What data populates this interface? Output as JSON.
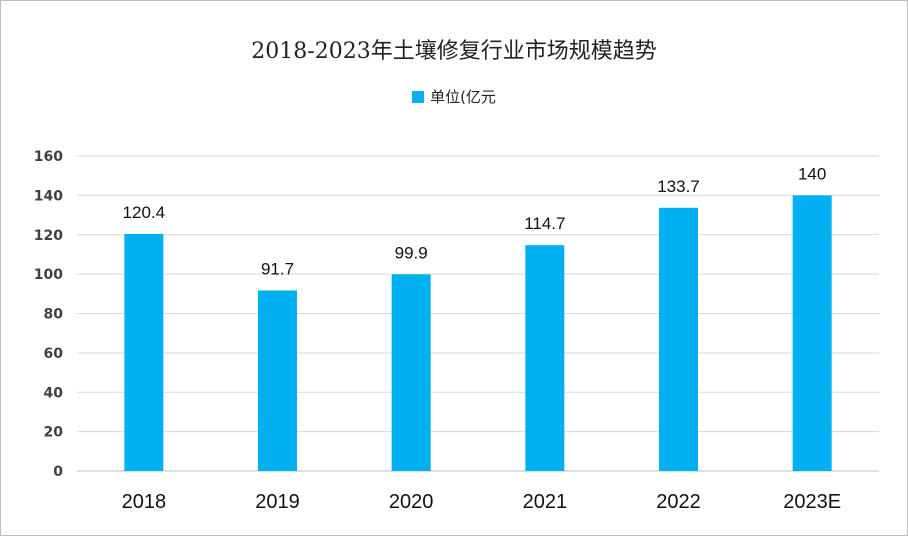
{
  "chart_data": {
    "type": "bar",
    "title": "2018-2023年土壤修复行业市场规模趋势",
    "xlabel": "",
    "ylabel": "",
    "categories": [
      "2018",
      "2019",
      "2020",
      "2021",
      "2022",
      "2023E"
    ],
    "series": [
      {
        "name": "单位(亿元",
        "values": [
          120.4,
          91.7,
          99.9,
          114.7,
          133.7,
          140
        ]
      }
    ],
    "data_labels": [
      "120.4",
      "91.7",
      "99.9",
      "114.7",
      "133.7",
      "140"
    ],
    "yticks": [
      0,
      20,
      40,
      60,
      80,
      100,
      120,
      140,
      160
    ],
    "ylim": [
      0,
      160
    ],
    "grid": true,
    "legend_position": "top-center",
    "colors": {
      "bar": "#00B0F0",
      "grid": "#d9d9d9",
      "axis": "#bfbfbf"
    }
  }
}
